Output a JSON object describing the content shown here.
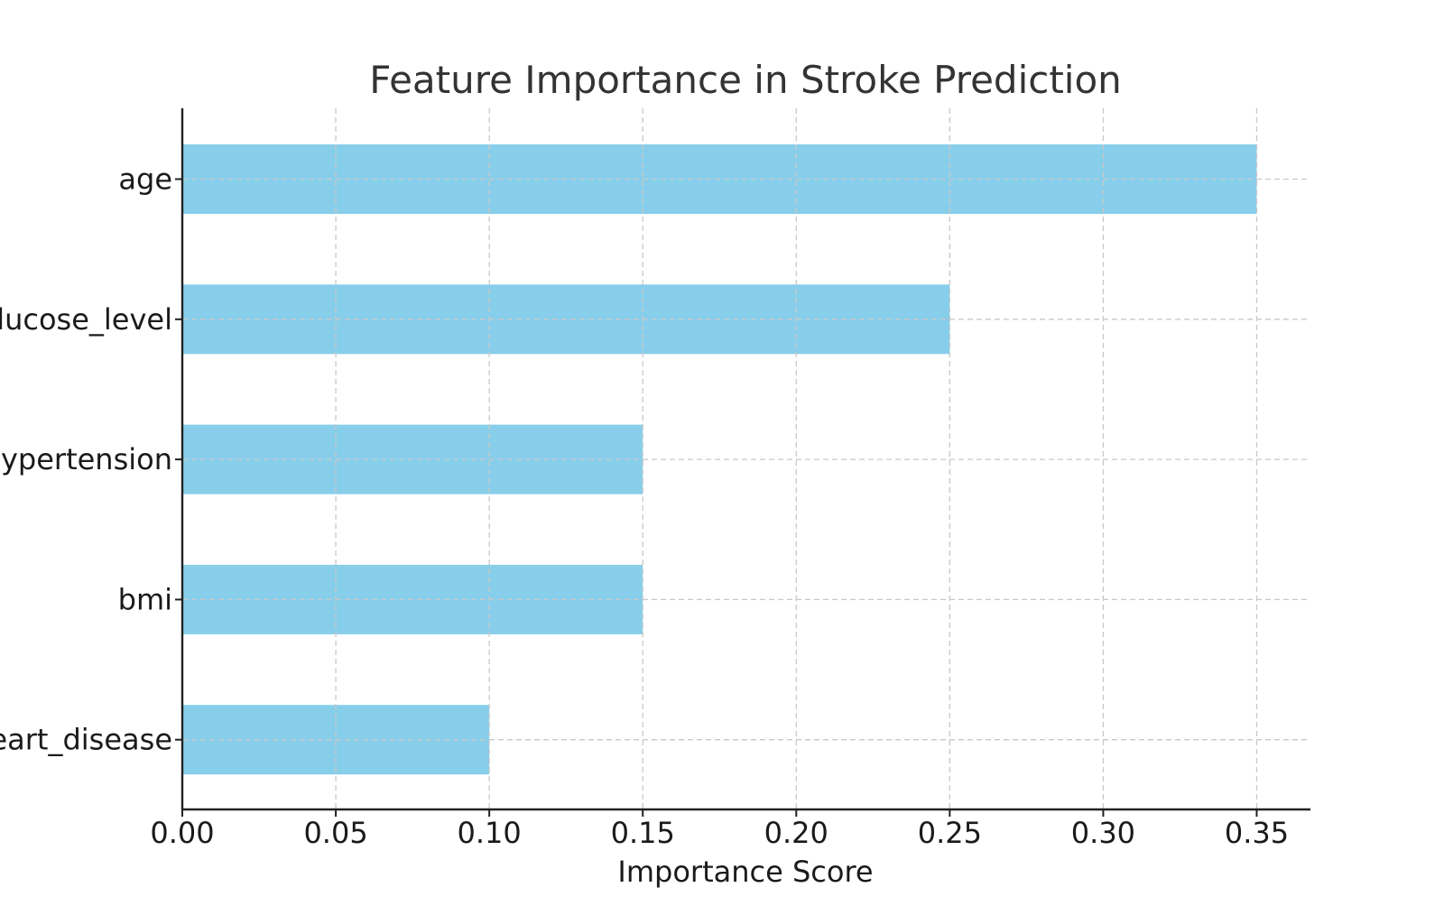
{
  "chart_data": {
    "type": "bar",
    "orientation": "horizontal",
    "title": "Feature Importance in Stroke Prediction",
    "xlabel": "Importance Score",
    "ylabel": "",
    "categories": [
      "age",
      "avg_glucose_level",
      "hypertension",
      "bmi",
      "heart_disease"
    ],
    "values": [
      0.35,
      0.25,
      0.15,
      0.15,
      0.1
    ],
    "xlim": [
      0,
      0.3675
    ],
    "xticks": [
      "0.00",
      "0.05",
      "0.10",
      "0.15",
      "0.20",
      "0.25",
      "0.30",
      "0.35"
    ],
    "xtick_values": [
      0,
      0.05,
      0.1,
      0.15,
      0.2,
      0.25,
      0.3,
      0.35
    ],
    "grid": true,
    "bar_color": "#87CEEB"
  }
}
